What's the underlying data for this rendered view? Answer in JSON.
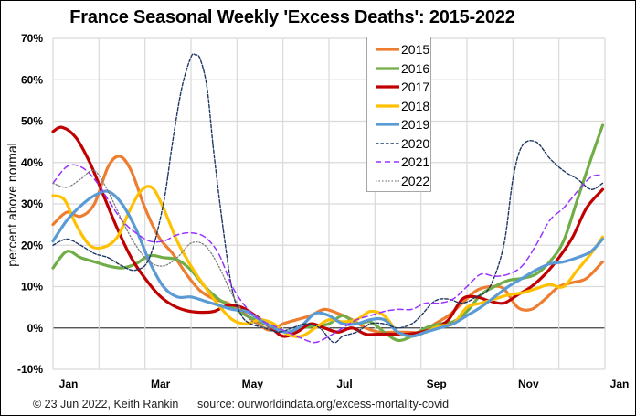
{
  "chart_data": {
    "type": "line",
    "title": "France Seasonal Weekly 'Excess Deaths': 2015-2022",
    "xlabel": "",
    "ylabel": "percent above normal",
    "x_ticks": [
      "Jan",
      "Mar",
      "May",
      "Jul",
      "Sep",
      "Nov",
      "Jan"
    ],
    "x_tick_positions_months": [
      0,
      2,
      4,
      6,
      8,
      10,
      12
    ],
    "y_ticks": [
      "70%",
      "60%",
      "50%",
      "40%",
      "30%",
      "20%",
      "10%",
      "0%",
      "-10%"
    ],
    "y_tick_values": [
      70,
      60,
      50,
      40,
      30,
      20,
      10,
      0,
      -10
    ],
    "xlim": [
      0,
      12
    ],
    "ylim": [
      -10,
      70
    ],
    "grid": true,
    "legend_position": "top-center",
    "x_unit": "months from start of January",
    "series": [
      {
        "name": "2015",
        "color": "#ed7d31",
        "style": "solid",
        "x": [
          0,
          0.3,
          0.6,
          0.9,
          1.2,
          1.45,
          1.7,
          2.0,
          2.3,
          2.6,
          2.9,
          3.2,
          3.5,
          3.8,
          4.1,
          4.4,
          4.7,
          5.0,
          5.3,
          5.6,
          5.9,
          6.2,
          6.5,
          6.8,
          7.1,
          7.4,
          7.7,
          8.0,
          8.3,
          8.6,
          8.9,
          9.2,
          9.5,
          9.8,
          10.1,
          10.4,
          10.7,
          11.0,
          11.3,
          11.6,
          11.95
        ],
        "y": [
          25,
          28,
          27,
          30,
          39,
          41.5,
          38,
          29,
          22,
          18,
          13,
          9,
          7,
          6,
          4,
          1.5,
          -0.5,
          1,
          2,
          3,
          4.5,
          3.5,
          2,
          0,
          -1,
          -1,
          -1,
          -1,
          1,
          3,
          6,
          9,
          10,
          9.5,
          5,
          4.5,
          7,
          10,
          11,
          12,
          16
        ]
      },
      {
        "name": "2016",
        "color": "#70ad47",
        "style": "solid",
        "x": [
          0,
          0.3,
          0.6,
          0.9,
          1.2,
          1.5,
          1.8,
          2.1,
          2.4,
          2.7,
          3.0,
          3.3,
          3.6,
          3.9,
          4.2,
          4.5,
          4.8,
          5.1,
          5.4,
          5.7,
          6.0,
          6.3,
          6.6,
          6.9,
          7.2,
          7.5,
          7.8,
          8.1,
          8.4,
          8.7,
          9.0,
          9.3,
          9.6,
          9.9,
          10.2,
          10.5,
          10.8,
          11.1,
          11.4,
          11.7,
          11.95
        ],
        "y": [
          14.5,
          18.5,
          17,
          16,
          15,
          14.5,
          15.5,
          17.5,
          17,
          16.5,
          14,
          10,
          7,
          5,
          3,
          1.5,
          0,
          -1,
          0,
          0.5,
          1,
          3,
          1,
          1.5,
          -1,
          -3,
          -2,
          0,
          1,
          1.5,
          4,
          8,
          10,
          11.5,
          12,
          13,
          16,
          21,
          31,
          41,
          49
        ]
      },
      {
        "name": "2017",
        "color": "#c00000",
        "style": "solid",
        "x": [
          0,
          0.2,
          0.5,
          0.8,
          1.1,
          1.4,
          1.7,
          2.0,
          2.3,
          2.6,
          2.9,
          3.2,
          3.5,
          3.8,
          4.1,
          4.4,
          4.7,
          5.0,
          5.3,
          5.6,
          5.9,
          6.2,
          6.5,
          6.8,
          7.1,
          7.4,
          7.7,
          8.0,
          8.3,
          8.6,
          8.9,
          9.2,
          9.5,
          9.8,
          10.1,
          10.4,
          10.7,
          11.0,
          11.3,
          11.6,
          11.95
        ],
        "y": [
          47.5,
          48.5,
          46,
          40,
          32,
          24,
          17,
          12,
          8,
          5.5,
          4.2,
          3.8,
          4,
          5.5,
          5,
          3,
          0.5,
          -2,
          -1,
          1,
          0,
          -1,
          0,
          -1.5,
          -1.5,
          -1.5,
          -1.5,
          -1,
          0,
          2,
          7,
          7.5,
          6.5,
          6,
          8,
          10,
          13,
          17,
          22,
          29,
          33.5
        ]
      },
      {
        "name": "2018",
        "color": "#ffc000",
        "style": "solid",
        "x": [
          0,
          0.25,
          0.5,
          0.8,
          1.1,
          1.4,
          1.65,
          1.9,
          2.15,
          2.4,
          2.7,
          3.0,
          3.3,
          3.6,
          3.9,
          4.2,
          4.5,
          4.8,
          5.1,
          5.4,
          5.7,
          6.0,
          6.3,
          6.6,
          6.9,
          7.2,
          7.5,
          7.8,
          8.1,
          8.4,
          8.7,
          9.0,
          9.3,
          9.6,
          9.9,
          10.2,
          10.5,
          10.8,
          11.1,
          11.4,
          11.7,
          11.95
        ],
        "y": [
          32,
          31,
          25,
          20,
          19.5,
          22,
          28,
          33,
          34,
          29,
          21,
          15,
          10,
          5.5,
          2,
          1,
          2,
          1,
          -1.5,
          -2,
          0,
          2,
          1.5,
          2,
          4,
          3,
          -1,
          -2,
          -1,
          0.5,
          1,
          5,
          6,
          7,
          8,
          8.5,
          9.5,
          10.5,
          10,
          14,
          18,
          22
        ]
      },
      {
        "name": "2019",
        "color": "#5b9bd5",
        "style": "solid",
        "x": [
          0,
          0.3,
          0.6,
          0.9,
          1.2,
          1.5,
          1.8,
          2.1,
          2.4,
          2.7,
          3.0,
          3.3,
          3.6,
          3.9,
          4.2,
          4.5,
          4.8,
          5.1,
          5.4,
          5.7,
          6.0,
          6.3,
          6.6,
          6.9,
          7.2,
          7.5,
          7.8,
          8.1,
          8.4,
          8.7,
          9.0,
          9.3,
          9.6,
          9.9,
          10.2,
          10.5,
          10.8,
          11.1,
          11.4,
          11.7,
          11.95
        ],
        "y": [
          21,
          26,
          29.5,
          32,
          33,
          30,
          24,
          16,
          10,
          7.5,
          7.5,
          6.5,
          5.5,
          4.5,
          4,
          2,
          0,
          -1,
          0.5,
          3.5,
          3,
          1,
          1,
          2,
          2,
          -1,
          -2,
          -1,
          0,
          1,
          3,
          5,
          7.5,
          10,
          12,
          14,
          15.5,
          16,
          17,
          18.5,
          21.5
        ]
      },
      {
        "name": "2020",
        "color": "#1f3864",
        "style": "dashed",
        "x": [
          0,
          0.3,
          0.6,
          0.9,
          1.2,
          1.5,
          1.8,
          2.1,
          2.4,
          2.6,
          2.8,
          3.0,
          3.1,
          3.2,
          3.35,
          3.5,
          3.7,
          3.9,
          4.1,
          4.3,
          4.6,
          4.9,
          5.2,
          5.5,
          5.8,
          6.1,
          6.3,
          6.6,
          6.9,
          7.2,
          7.5,
          7.8,
          8.0,
          8.3,
          8.6,
          8.9,
          9.2,
          9.5,
          9.8,
          10.0,
          10.2,
          10.5,
          10.8,
          11.1,
          11.4,
          11.7,
          11.95
        ],
        "y": [
          20,
          21.5,
          20,
          18,
          17,
          15,
          14,
          17,
          30,
          45,
          58,
          65.5,
          66,
          65,
          58,
          42,
          24,
          9,
          3,
          1,
          0,
          -1,
          0,
          1,
          0,
          -3.5,
          -2,
          -1,
          1,
          1,
          0,
          1,
          3,
          6.5,
          7,
          6,
          7.5,
          10,
          20,
          36,
          44,
          45,
          41,
          38,
          36,
          33.5,
          35
        ]
      },
      {
        "name": "2021",
        "color": "#9933ff",
        "style": "dashed",
        "x": [
          0,
          0.3,
          0.6,
          0.9,
          1.2,
          1.5,
          1.8,
          2.1,
          2.4,
          2.7,
          3.0,
          3.3,
          3.6,
          3.9,
          4.2,
          4.5,
          4.8,
          5.1,
          5.4,
          5.7,
          6.0,
          6.3,
          6.6,
          6.9,
          7.2,
          7.5,
          7.8,
          8.1,
          8.4,
          8.7,
          9.0,
          9.3,
          9.6,
          9.9,
          10.2,
          10.5,
          10.8,
          11.1,
          11.4,
          11.7,
          11.95
        ],
        "y": [
          35,
          39,
          39,
          36,
          31,
          26,
          23,
          21,
          21,
          22.5,
          23,
          22,
          18,
          10,
          5,
          2,
          0.5,
          -1,
          -2.5,
          -3.5,
          -2,
          0,
          2,
          3,
          4,
          4.5,
          4.5,
          6,
          6,
          7,
          10,
          13,
          12.5,
          13,
          15,
          20,
          26,
          29,
          33,
          36.5,
          37
        ]
      },
      {
        "name": "2022",
        "color": "#7f7f7f",
        "style": "dotted",
        "x": [
          0,
          0.3,
          0.6,
          0.9,
          1.2,
          1.5,
          1.8,
          2.1,
          2.4,
          2.7,
          3.0,
          3.3,
          3.6,
          3.9,
          4.2,
          4.5,
          4.8
        ],
        "y": [
          35,
          34,
          36,
          38,
          33,
          26,
          20,
          16,
          15,
          17,
          20.5,
          20,
          15,
          8,
          3,
          0.5,
          0
        ]
      }
    ]
  },
  "footer": {
    "credit": "© 23 Jun 2022, Keith Rankin",
    "source": "source: ourworldindata.org/excess-mortality-covid"
  }
}
